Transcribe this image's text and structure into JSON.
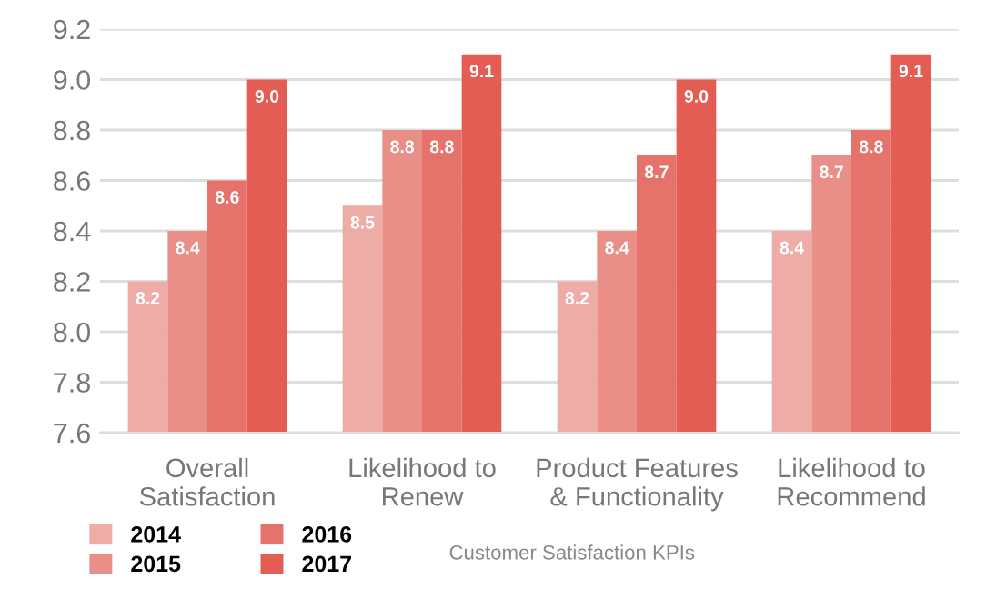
{
  "chart_data": {
    "type": "bar",
    "categories": [
      "Overall\nSatisfaction",
      "Likelihood to\nRenew",
      "Product Features\n& Functionality",
      "Likelihood to\nRecommend"
    ],
    "series": [
      {
        "name": "2014",
        "color": "#eeaca6",
        "values": [
          8.2,
          8.5,
          8.2,
          8.4
        ],
        "value_labels": [
          "8.2",
          "8.5",
          "8.2",
          "8.4"
        ]
      },
      {
        "name": "2015",
        "color": "#ea8f88",
        "values": [
          8.4,
          8.8,
          8.4,
          8.7
        ],
        "value_labels": [
          "8.4",
          "8.8",
          "8.4",
          "8.7"
        ]
      },
      {
        "name": "2016",
        "color": "#e6736b",
        "values": [
          8.6,
          8.8,
          8.7,
          8.8
        ],
        "value_labels": [
          "8.6",
          "8.8",
          "8.7",
          "8.8"
        ]
      },
      {
        "name": "2017",
        "color": "#e35d55",
        "values": [
          9.0,
          9.1,
          9.0,
          9.1
        ],
        "value_labels": [
          "9.0",
          "9.1",
          "9.0",
          "9.1"
        ]
      }
    ],
    "ylim": [
      7.6,
      9.2
    ],
    "yticks": [
      "7.6",
      "7.8",
      "8.0",
      "8.2",
      "8.4",
      "8.6",
      "8.8",
      "9.0",
      "9.2"
    ],
    "grid": "y",
    "legend": "bottom",
    "annotations": [
      "Customer Satisfaction KPIs"
    ]
  }
}
